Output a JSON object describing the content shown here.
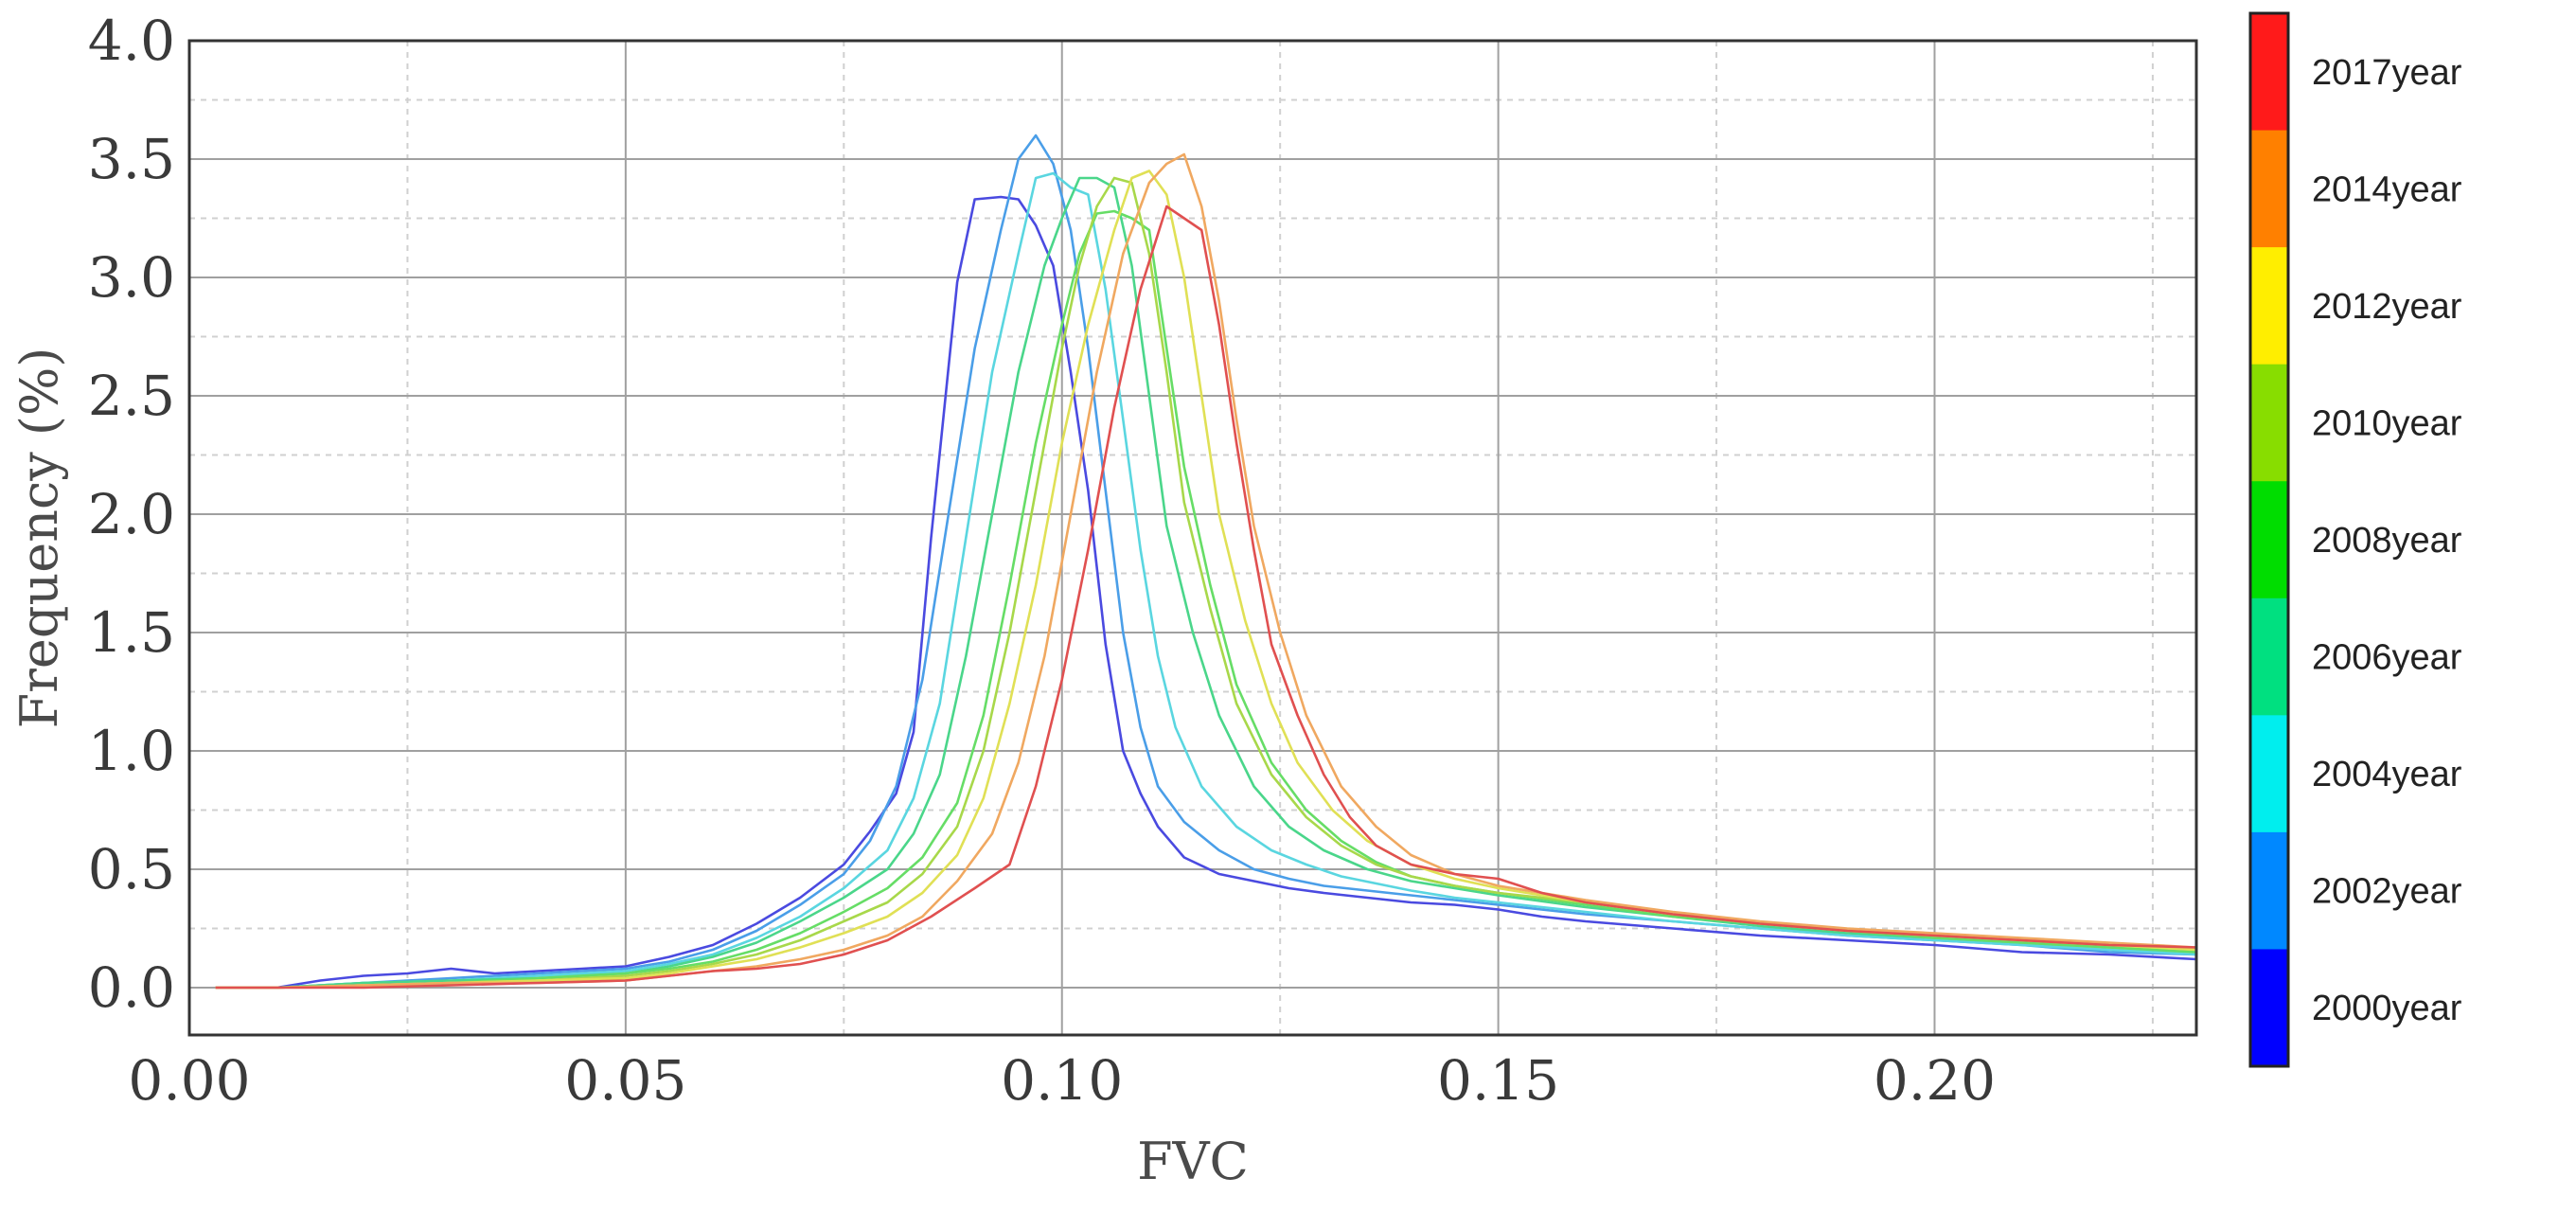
{
  "chart_data": {
    "type": "line",
    "title": "",
    "xlabel": "FVC",
    "ylabel": "Frequency (%)",
    "xlim": [
      0.0,
      0.23
    ],
    "ylim": [
      -0.2,
      4.0
    ],
    "x_ticks": [
      "0.00",
      "0.05",
      "0.10",
      "0.15",
      "0.20"
    ],
    "y_ticks": [
      "0.0",
      "0.5",
      "1.0",
      "1.5",
      "2.0",
      "2.5",
      "3.0",
      "3.5",
      "4.0"
    ],
    "legend_title": "",
    "legend_entries": [
      "2017year",
      "2014year",
      "2012year",
      "2010year",
      "2008year",
      "2006year",
      "2004year",
      "2002year",
      "2000year"
    ],
    "legend_colors": [
      "#ff1a1a",
      "#ff8000",
      "#ffee00",
      "#88dd00",
      "#00dd00",
      "#00e080",
      "#00eeee",
      "#0088ff",
      "#0000ff"
    ],
    "series": [
      {
        "name": "2000year",
        "color": "#4a4ae0",
        "x": [
          0.003,
          0.01,
          0.015,
          0.02,
          0.025,
          0.03,
          0.035,
          0.04,
          0.045,
          0.05,
          0.055,
          0.06,
          0.065,
          0.07,
          0.075,
          0.078,
          0.081,
          0.083,
          0.085,
          0.088,
          0.09,
          0.093,
          0.095,
          0.097,
          0.099,
          0.101,
          0.103,
          0.105,
          0.107,
          0.109,
          0.111,
          0.114,
          0.118,
          0.122,
          0.126,
          0.13,
          0.135,
          0.14,
          0.145,
          0.15,
          0.155,
          0.16,
          0.17,
          0.18,
          0.19,
          0.2,
          0.21,
          0.22,
          0.23
        ],
        "y": [
          0.0,
          0.0,
          0.03,
          0.05,
          0.06,
          0.08,
          0.06,
          0.07,
          0.08,
          0.09,
          0.13,
          0.18,
          0.27,
          0.38,
          0.52,
          0.66,
          0.82,
          1.08,
          1.9,
          2.98,
          3.33,
          3.34,
          3.33,
          3.22,
          3.05,
          2.6,
          2.1,
          1.45,
          1.0,
          0.82,
          0.68,
          0.55,
          0.48,
          0.45,
          0.42,
          0.4,
          0.38,
          0.36,
          0.35,
          0.33,
          0.3,
          0.28,
          0.25,
          0.22,
          0.2,
          0.18,
          0.15,
          0.14,
          0.12
        ]
      },
      {
        "name": "2002year",
        "color": "#4a9ee8",
        "x": [
          0.003,
          0.01,
          0.02,
          0.03,
          0.04,
          0.05,
          0.055,
          0.06,
          0.065,
          0.07,
          0.075,
          0.078,
          0.081,
          0.084,
          0.087,
          0.09,
          0.093,
          0.095,
          0.097,
          0.099,
          0.101,
          0.103,
          0.105,
          0.107,
          0.109,
          0.111,
          0.114,
          0.118,
          0.122,
          0.126,
          0.13,
          0.135,
          0.14,
          0.145,
          0.15,
          0.16,
          0.17,
          0.18,
          0.19,
          0.2,
          0.21,
          0.22,
          0.23
        ],
        "y": [
          0.0,
          0.0,
          0.02,
          0.04,
          0.06,
          0.08,
          0.11,
          0.16,
          0.24,
          0.35,
          0.48,
          0.62,
          0.85,
          1.3,
          2.0,
          2.7,
          3.2,
          3.5,
          3.6,
          3.48,
          3.2,
          2.7,
          2.1,
          1.5,
          1.1,
          0.85,
          0.7,
          0.58,
          0.5,
          0.46,
          0.43,
          0.41,
          0.39,
          0.37,
          0.35,
          0.31,
          0.28,
          0.25,
          0.22,
          0.2,
          0.18,
          0.15,
          0.14
        ]
      },
      {
        "name": "2004year",
        "color": "#5ad6e0",
        "x": [
          0.003,
          0.01,
          0.02,
          0.03,
          0.04,
          0.05,
          0.055,
          0.06,
          0.065,
          0.07,
          0.075,
          0.08,
          0.083,
          0.086,
          0.089,
          0.092,
          0.095,
          0.097,
          0.099,
          0.101,
          0.103,
          0.105,
          0.107,
          0.109,
          0.111,
          0.113,
          0.116,
          0.12,
          0.124,
          0.128,
          0.132,
          0.136,
          0.14,
          0.145,
          0.15,
          0.16,
          0.17,
          0.18,
          0.19,
          0.2,
          0.21,
          0.22,
          0.23
        ],
        "y": [
          0.0,
          0.0,
          0.02,
          0.03,
          0.05,
          0.07,
          0.1,
          0.14,
          0.21,
          0.3,
          0.42,
          0.58,
          0.8,
          1.2,
          1.9,
          2.6,
          3.1,
          3.42,
          3.44,
          3.38,
          3.35,
          2.95,
          2.4,
          1.85,
          1.4,
          1.1,
          0.85,
          0.68,
          0.58,
          0.52,
          0.47,
          0.44,
          0.41,
          0.38,
          0.36,
          0.32,
          0.28,
          0.25,
          0.22,
          0.2,
          0.18,
          0.16,
          0.14
        ]
      },
      {
        "name": "2006year",
        "color": "#4ad68a",
        "x": [
          0.003,
          0.01,
          0.02,
          0.03,
          0.04,
          0.05,
          0.055,
          0.06,
          0.065,
          0.07,
          0.075,
          0.08,
          0.083,
          0.086,
          0.089,
          0.092,
          0.095,
          0.098,
          0.1,
          0.102,
          0.104,
          0.106,
          0.108,
          0.11,
          0.112,
          0.115,
          0.118,
          0.122,
          0.126,
          0.13,
          0.135,
          0.14,
          0.145,
          0.15,
          0.16,
          0.17,
          0.18,
          0.19,
          0.2,
          0.21,
          0.22,
          0.23
        ],
        "y": [
          0.0,
          0.0,
          0.02,
          0.03,
          0.04,
          0.06,
          0.09,
          0.13,
          0.19,
          0.28,
          0.38,
          0.5,
          0.65,
          0.9,
          1.4,
          2.0,
          2.6,
          3.05,
          3.25,
          3.42,
          3.42,
          3.38,
          3.05,
          2.5,
          1.95,
          1.5,
          1.15,
          0.85,
          0.68,
          0.58,
          0.5,
          0.45,
          0.42,
          0.39,
          0.34,
          0.3,
          0.26,
          0.23,
          0.21,
          0.19,
          0.17,
          0.15
        ]
      },
      {
        "name": "2008year",
        "color": "#66dd66",
        "x": [
          0.003,
          0.01,
          0.02,
          0.03,
          0.04,
          0.05,
          0.055,
          0.06,
          0.065,
          0.07,
          0.075,
          0.08,
          0.084,
          0.088,
          0.091,
          0.094,
          0.097,
          0.1,
          0.102,
          0.104,
          0.106,
          0.108,
          0.11,
          0.112,
          0.114,
          0.117,
          0.12,
          0.124,
          0.128,
          0.132,
          0.136,
          0.14,
          0.145,
          0.15,
          0.16,
          0.17,
          0.18,
          0.19,
          0.2,
          0.21,
          0.22,
          0.23
        ],
        "y": [
          0.0,
          0.0,
          0.01,
          0.02,
          0.04,
          0.06,
          0.08,
          0.11,
          0.16,
          0.23,
          0.32,
          0.42,
          0.55,
          0.78,
          1.15,
          1.7,
          2.3,
          2.8,
          3.1,
          3.27,
          3.28,
          3.25,
          3.2,
          2.7,
          2.2,
          1.7,
          1.28,
          0.95,
          0.75,
          0.62,
          0.53,
          0.47,
          0.43,
          0.4,
          0.35,
          0.3,
          0.27,
          0.24,
          0.21,
          0.19,
          0.17,
          0.15
        ]
      },
      {
        "name": "2010year",
        "color": "#a8d84a",
        "x": [
          0.003,
          0.01,
          0.02,
          0.03,
          0.04,
          0.05,
          0.055,
          0.06,
          0.065,
          0.07,
          0.075,
          0.08,
          0.084,
          0.088,
          0.091,
          0.094,
          0.097,
          0.1,
          0.102,
          0.104,
          0.106,
          0.108,
          0.11,
          0.112,
          0.114,
          0.117,
          0.12,
          0.124,
          0.128,
          0.132,
          0.136,
          0.14,
          0.145,
          0.15,
          0.16,
          0.17,
          0.18,
          0.19,
          0.2,
          0.21,
          0.22,
          0.23
        ],
        "y": [
          0.0,
          0.0,
          0.01,
          0.02,
          0.03,
          0.05,
          0.07,
          0.1,
          0.14,
          0.2,
          0.28,
          0.36,
          0.48,
          0.68,
          1.0,
          1.5,
          2.1,
          2.7,
          3.05,
          3.3,
          3.42,
          3.4,
          3.1,
          2.6,
          2.05,
          1.6,
          1.2,
          0.9,
          0.72,
          0.6,
          0.52,
          0.47,
          0.43,
          0.4,
          0.36,
          0.31,
          0.27,
          0.24,
          0.22,
          0.2,
          0.18,
          0.16
        ]
      },
      {
        "name": "2012year",
        "color": "#e0e055",
        "x": [
          0.003,
          0.01,
          0.02,
          0.03,
          0.04,
          0.05,
          0.055,
          0.06,
          0.065,
          0.07,
          0.075,
          0.08,
          0.084,
          0.088,
          0.091,
          0.094,
          0.097,
          0.1,
          0.103,
          0.106,
          0.108,
          0.11,
          0.112,
          0.114,
          0.116,
          0.118,
          0.121,
          0.124,
          0.127,
          0.131,
          0.135,
          0.14,
          0.145,
          0.15,
          0.16,
          0.17,
          0.18,
          0.19,
          0.2,
          0.21,
          0.22,
          0.23
        ],
        "y": [
          0.0,
          0.0,
          0.01,
          0.02,
          0.03,
          0.04,
          0.06,
          0.09,
          0.12,
          0.17,
          0.23,
          0.3,
          0.4,
          0.56,
          0.8,
          1.2,
          1.7,
          2.3,
          2.8,
          3.2,
          3.42,
          3.45,
          3.35,
          3.0,
          2.5,
          2.0,
          1.55,
          1.2,
          0.95,
          0.75,
          0.62,
          0.52,
          0.46,
          0.42,
          0.36,
          0.31,
          0.27,
          0.24,
          0.22,
          0.2,
          0.18,
          0.16
        ]
      },
      {
        "name": "2014year",
        "color": "#f0a860",
        "x": [
          0.003,
          0.01,
          0.02,
          0.03,
          0.04,
          0.05,
          0.055,
          0.06,
          0.065,
          0.07,
          0.075,
          0.08,
          0.084,
          0.088,
          0.092,
          0.095,
          0.098,
          0.101,
          0.104,
          0.107,
          0.11,
          0.112,
          0.114,
          0.116,
          0.118,
          0.12,
          0.122,
          0.125,
          0.128,
          0.132,
          0.136,
          0.14,
          0.145,
          0.15,
          0.16,
          0.17,
          0.18,
          0.19,
          0.2,
          0.21,
          0.22,
          0.23
        ],
        "y": [
          0.0,
          0.0,
          0.01,
          0.02,
          0.02,
          0.03,
          0.05,
          0.07,
          0.09,
          0.12,
          0.16,
          0.22,
          0.3,
          0.45,
          0.65,
          0.95,
          1.4,
          2.0,
          2.6,
          3.1,
          3.4,
          3.48,
          3.52,
          3.3,
          2.9,
          2.4,
          1.95,
          1.5,
          1.15,
          0.85,
          0.68,
          0.56,
          0.48,
          0.43,
          0.37,
          0.32,
          0.28,
          0.25,
          0.23,
          0.21,
          0.19,
          0.17
        ]
      },
      {
        "name": "2017year",
        "color": "#e05050",
        "x": [
          0.003,
          0.01,
          0.02,
          0.03,
          0.04,
          0.05,
          0.055,
          0.06,
          0.065,
          0.07,
          0.075,
          0.08,
          0.085,
          0.09,
          0.094,
          0.097,
          0.1,
          0.103,
          0.106,
          0.109,
          0.112,
          0.114,
          0.116,
          0.118,
          0.12,
          0.122,
          0.124,
          0.127,
          0.13,
          0.133,
          0.136,
          0.14,
          0.145,
          0.15,
          0.155,
          0.16,
          0.17,
          0.18,
          0.19,
          0.2,
          0.21,
          0.22,
          0.23
        ],
        "y": [
          0.0,
          0.0,
          0.0,
          0.01,
          0.02,
          0.03,
          0.05,
          0.07,
          0.08,
          0.1,
          0.14,
          0.2,
          0.3,
          0.42,
          0.52,
          0.85,
          1.3,
          1.85,
          2.45,
          2.95,
          3.3,
          3.25,
          3.2,
          2.8,
          2.3,
          1.85,
          1.45,
          1.15,
          0.9,
          0.72,
          0.6,
          0.52,
          0.48,
          0.46,
          0.4,
          0.36,
          0.31,
          0.27,
          0.24,
          0.22,
          0.2,
          0.18,
          0.17
        ]
      }
    ]
  }
}
